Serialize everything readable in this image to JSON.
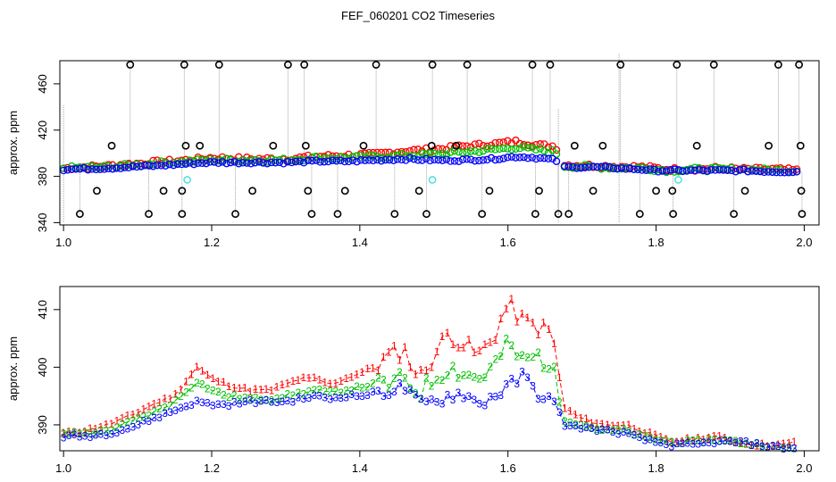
{
  "title": "FEF_060201  CO2 Timeseries",
  "colors": {
    "series1": "#ff0000",
    "series2": "#00c000",
    "series3": "#0000ff",
    "spike": "#000000",
    "flag": "#40e0e0",
    "line": "#909090"
  },
  "chart_data": [
    {
      "type": "scatter",
      "title": "",
      "xlabel": "",
      "ylabel": "approx. ppm",
      "xlim": [
        0.995,
        2.02
      ],
      "ylim": [
        338,
        480
      ],
      "xticks": [
        "1.0",
        "1.2",
        "1.4",
        "1.6",
        "1.8",
        "2.0"
      ],
      "yticks": [
        "340",
        "380",
        "420",
        "460"
      ],
      "grid": false,
      "notes": "dense time series of three overlapping series with black outlier spikes to ~477 and ~347 ppm; cyan flagged points near 377 ppm",
      "spikes_high": [
        1.09,
        1.163,
        1.21,
        1.303,
        1.325,
        1.422,
        1.498,
        1.545,
        1.633,
        1.657,
        1.752,
        1.828,
        1.878,
        1.965,
        1.993
      ],
      "spikes_low": [
        1.022,
        1.115,
        1.16,
        1.232,
        1.335,
        1.37,
        1.447,
        1.49,
        1.565,
        1.637,
        1.668,
        1.682,
        1.778,
        1.823,
        1.905,
        1.997
      ],
      "spikes_mid_high": [
        1.065,
        1.165,
        1.184,
        1.283,
        1.327,
        1.405,
        1.497,
        1.53,
        1.69,
        1.728,
        1.855,
        1.952,
        1.995
      ],
      "spikes_mid_low": [
        1.045,
        1.135,
        1.16,
        1.255,
        1.33,
        1.38,
        1.48,
        1.575,
        1.642,
        1.715,
        1.8,
        1.822,
        1.92,
        1.996
      ],
      "flagged": [
        [
          1.167,
          377
        ],
        [
          1.498,
          377
        ],
        [
          1.83,
          377
        ]
      ],
      "series": [
        {
          "name": "1",
          "x": [
            1.0,
            1.06,
            1.12,
            1.17,
            1.2,
            1.25,
            1.3,
            1.34,
            1.38,
            1.42,
            1.46,
            1.5,
            1.54,
            1.58,
            1.61,
            1.64,
            1.665,
            1.67,
            1.72,
            1.78,
            1.8,
            1.82,
            1.84,
            1.88,
            1.92,
            1.96,
            1.99
          ],
          "values": [
            387,
            389,
            392,
            394,
            396,
            395,
            395,
            397,
            398,
            399,
            402,
            403,
            406,
            408,
            410,
            407,
            406,
            390,
            389,
            388,
            387,
            386,
            386,
            387,
            386,
            386,
            385
          ]
        },
        {
          "name": "2",
          "x": [
            1.0,
            1.06,
            1.12,
            1.17,
            1.2,
            1.25,
            1.3,
            1.34,
            1.38,
            1.42,
            1.46,
            1.5,
            1.54,
            1.58,
            1.61,
            1.64,
            1.665,
            1.67,
            1.72,
            1.78,
            1.8,
            1.82,
            1.84,
            1.88,
            1.92,
            1.96,
            1.99
          ],
          "values": [
            387,
            388,
            391,
            393,
            394,
            394,
            394,
            396,
            396,
            397,
            398,
            399,
            401,
            403,
            405,
            403,
            401,
            389,
            388,
            387,
            386,
            385,
            386,
            386,
            386,
            385,
            385
          ]
        },
        {
          "name": "3",
          "x": [
            1.0,
            1.06,
            1.12,
            1.17,
            1.2,
            1.25,
            1.3,
            1.34,
            1.38,
            1.42,
            1.46,
            1.5,
            1.54,
            1.58,
            1.61,
            1.64,
            1.665,
            1.67,
            1.72,
            1.78,
            1.8,
            1.82,
            1.84,
            1.88,
            1.92,
            1.96,
            1.99
          ],
          "values": [
            386,
            387,
            389,
            391,
            392,
            392,
            392,
            393,
            393,
            394,
            395,
            394,
            394,
            395,
            397,
            396,
            394,
            388,
            388,
            386,
            385,
            385,
            385,
            385,
            385,
            384,
            384
          ]
        }
      ]
    },
    {
      "type": "line",
      "title": "",
      "xlabel": "",
      "ylabel": "approx. ppm",
      "xlim": [
        0.995,
        2.02
      ],
      "ylim": [
        385.5,
        414
      ],
      "xticks": [
        "1.0",
        "1.2",
        "1.4",
        "1.6",
        "1.8",
        "2.0"
      ],
      "yticks": [
        "390",
        "400",
        "410"
      ],
      "grid": false,
      "notes": "three series plotted with their index digits as markers joined by dashed lines",
      "series": [
        {
          "name": "1",
          "x": [
            1.0,
            1.03,
            1.06,
            1.09,
            1.12,
            1.15,
            1.18,
            1.2,
            1.22,
            1.25,
            1.28,
            1.3,
            1.32,
            1.34,
            1.36,
            1.38,
            1.4,
            1.42,
            1.44,
            1.46,
            1.48,
            1.5,
            1.52,
            1.54,
            1.56,
            1.58,
            1.6,
            1.62,
            1.64,
            1.66,
            1.675,
            1.7,
            1.73,
            1.76,
            1.78,
            1.8,
            1.82,
            1.85,
            1.88,
            1.91,
            1.94,
            1.97,
            1.99
          ],
          "values": [
            388.5,
            389,
            390,
            391.5,
            393.5,
            395,
            400,
            398,
            397,
            396,
            396,
            397,
            398,
            398,
            397,
            398,
            399,
            400,
            402,
            403,
            398,
            402,
            406,
            404,
            402,
            405,
            411,
            408,
            407,
            406,
            393,
            391,
            390,
            390,
            389,
            388,
            387,
            387.5,
            388,
            387,
            386.5,
            386.5,
            387
          ]
        },
        {
          "name": "2",
          "x": [
            1.0,
            1.03,
            1.06,
            1.09,
            1.12,
            1.15,
            1.18,
            1.2,
            1.22,
            1.25,
            1.28,
            1.3,
            1.32,
            1.34,
            1.36,
            1.38,
            1.4,
            1.42,
            1.44,
            1.46,
            1.48,
            1.5,
            1.52,
            1.54,
            1.56,
            1.58,
            1.6,
            1.62,
            1.64,
            1.66,
            1.675,
            1.7,
            1.73,
            1.76,
            1.78,
            1.8,
            1.82,
            1.85,
            1.88,
            1.91,
            1.94,
            1.97,
            1.99
          ],
          "values": [
            388.5,
            388.5,
            389,
            390.5,
            392,
            394,
            397.5,
            396,
            395,
            394.5,
            394.5,
            395,
            395.5,
            396,
            395.5,
            396,
            396.5,
            397,
            397,
            398,
            395.5,
            398,
            400,
            399,
            398,
            400,
            404,
            401,
            402,
            400,
            391,
            390,
            389,
            389,
            388,
            387.5,
            387,
            387,
            387.5,
            387,
            386.5,
            386,
            386
          ]
        },
        {
          "name": "3",
          "x": [
            1.0,
            1.03,
            1.06,
            1.09,
            1.12,
            1.15,
            1.18,
            1.2,
            1.22,
            1.25,
            1.28,
            1.3,
            1.32,
            1.34,
            1.36,
            1.38,
            1.4,
            1.42,
            1.44,
            1.46,
            1.48,
            1.5,
            1.52,
            1.54,
            1.56,
            1.58,
            1.6,
            1.62,
            1.64,
            1.66,
            1.675,
            1.7,
            1.73,
            1.76,
            1.78,
            1.8,
            1.82,
            1.85,
            1.88,
            1.91,
            1.94,
            1.97,
            1.99
          ],
          "values": [
            388,
            388,
            388.5,
            389.5,
            391,
            392.5,
            394,
            393.5,
            393.5,
            394,
            394,
            394,
            394.5,
            395,
            394.5,
            395,
            395,
            395.5,
            396,
            396.5,
            393.5,
            394,
            395,
            395.5,
            393.5,
            395,
            396.5,
            398.5,
            395.5,
            394,
            390,
            389.5,
            389,
            388.5,
            387.5,
            387,
            386.5,
            386.5,
            387,
            387,
            386.5,
            386,
            386
          ]
        }
      ]
    }
  ]
}
